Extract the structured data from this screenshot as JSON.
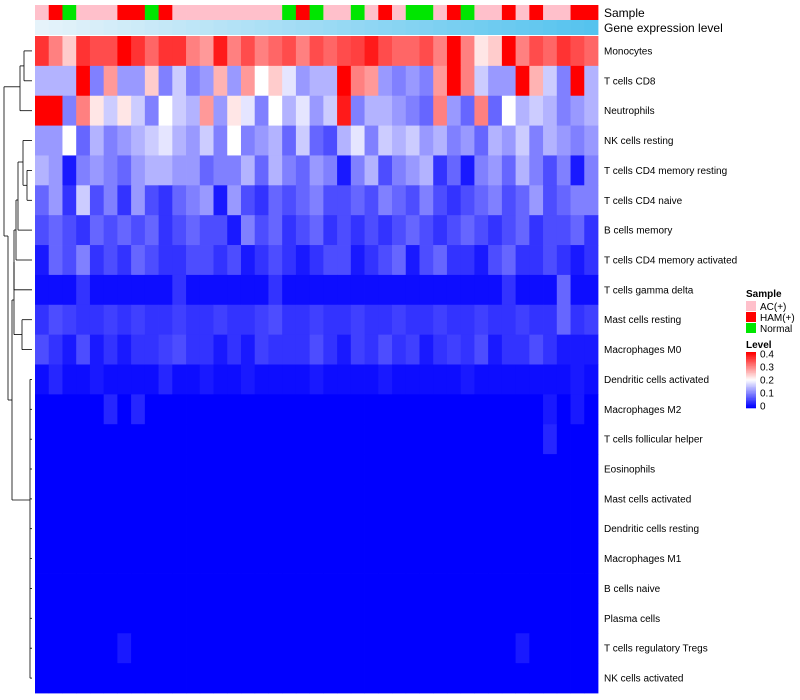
{
  "chart_data": {
    "type": "heatmap",
    "title": "",
    "annotation_rows": [
      "Sample",
      "Gene expression level"
    ],
    "sample_groups": [
      "AC(+)",
      "HAM(+)",
      "Normal",
      "AC(+)",
      "AC(+)",
      "AC(+)",
      "HAM(+)",
      "HAM(+)",
      "Normal",
      "HAM(+)",
      "AC(+)",
      "AC(+)",
      "AC(+)",
      "AC(+)",
      "AC(+)",
      "AC(+)",
      "AC(+)",
      "AC(+)",
      "Normal",
      "HAM(+)",
      "Normal",
      "AC(+)",
      "AC(+)",
      "Normal",
      "AC(+)",
      "HAM(+)",
      "AC(+)",
      "Normal",
      "Normal",
      "AC(+)",
      "HAM(+)",
      "Normal",
      "AC(+)",
      "AC(+)",
      "HAM(+)",
      "AC(+)",
      "HAM(+)",
      "AC(+)",
      "AC(+)",
      "HAM(+)",
      "HAM(+)"
    ],
    "gene_expression": [
      0.02,
      0.04,
      0.06,
      0.08,
      0.1,
      0.12,
      0.14,
      0.16,
      0.18,
      0.2,
      0.22,
      0.24,
      0.26,
      0.28,
      0.3,
      0.32,
      0.34,
      0.36,
      0.38,
      0.4,
      0.42,
      0.44,
      0.46,
      0.48,
      0.5,
      0.52,
      0.54,
      0.56,
      0.58,
      0.6,
      0.62,
      0.64,
      0.66,
      0.68,
      0.7,
      0.72,
      0.74,
      0.76,
      0.78,
      0.8,
      0.82
    ],
    "cell_types": [
      "Monocytes",
      "T cells CD8",
      "Neutrophils",
      "NK cells resting",
      "T cells CD4 memory resting",
      "T cells CD4 naive",
      "B cells memory",
      "T cells CD4 memory activated",
      "T cells gamma delta",
      "Mast cells resting",
      "Macrophages M0",
      "Dendritic cells activated",
      "Macrophages M2",
      "T cells follicular helper",
      "Eosinophils",
      "Mast cells activated",
      "Dendritic cells resting",
      "Macrophages M1",
      "B cells naive",
      "Plasma cells",
      "T cells regulatory  Tregs",
      "NK cells activated"
    ],
    "values": [
      [
        0.36,
        0.3,
        0.24,
        0.36,
        0.34,
        0.34,
        0.4,
        0.36,
        0.32,
        0.36,
        0.36,
        0.3,
        0.28,
        0.38,
        0.3,
        0.34,
        0.3,
        0.32,
        0.34,
        0.3,
        0.34,
        0.32,
        0.34,
        0.35,
        0.38,
        0.34,
        0.32,
        0.32,
        0.34,
        0.3,
        0.4,
        0.3,
        0.22,
        0.24,
        0.4,
        0.3,
        0.34,
        0.32,
        0.36,
        0.34,
        0.32
      ],
      [
        0.14,
        0.14,
        0.14,
        0.4,
        0.1,
        0.28,
        0.12,
        0.12,
        0.24,
        0.1,
        0.16,
        0.1,
        0.12,
        0.26,
        0.12,
        0.28,
        0.2,
        0.24,
        0.18,
        0.12,
        0.14,
        0.14,
        0.4,
        0.3,
        0.28,
        0.12,
        0.1,
        0.12,
        0.1,
        0.28,
        0.4,
        0.3,
        0.16,
        0.12,
        0.12,
        0.4,
        0.26,
        0.16,
        0.1,
        0.4,
        0.14
      ],
      [
        0.4,
        0.4,
        0.1,
        0.3,
        0.22,
        0.16,
        0.22,
        0.16,
        0.1,
        0.2,
        0.16,
        0.14,
        0.28,
        0.12,
        0.22,
        0.18,
        0.1,
        0.2,
        0.14,
        0.18,
        0.12,
        0.16,
        0.38,
        0.1,
        0.14,
        0.14,
        0.12,
        0.1,
        0.08,
        0.3,
        0.12,
        0.08,
        0.3,
        0.08,
        0.2,
        0.14,
        0.16,
        0.14,
        0.1,
        0.12,
        0.14
      ],
      [
        0.12,
        0.12,
        0.2,
        0.08,
        0.14,
        0.1,
        0.12,
        0.14,
        0.16,
        0.18,
        0.14,
        0.12,
        0.16,
        0.1,
        0.2,
        0.1,
        0.12,
        0.14,
        0.08,
        0.16,
        0.08,
        0.06,
        0.14,
        0.18,
        0.1,
        0.16,
        0.14,
        0.16,
        0.12,
        0.14,
        0.1,
        0.12,
        0.08,
        0.14,
        0.12,
        0.16,
        0.1,
        0.14,
        0.12,
        0.1,
        0.12
      ],
      [
        0.14,
        0.12,
        0.02,
        0.1,
        0.12,
        0.1,
        0.08,
        0.12,
        0.14,
        0.14,
        0.12,
        0.12,
        0.08,
        0.1,
        0.1,
        0.14,
        0.08,
        0.14,
        0.1,
        0.08,
        0.12,
        0.1,
        0.02,
        0.1,
        0.14,
        0.06,
        0.1,
        0.12,
        0.14,
        0.04,
        0.08,
        0.02,
        0.1,
        0.12,
        0.08,
        0.14,
        0.1,
        0.06,
        0.1,
        0.02,
        0.1
      ],
      [
        0.08,
        0.12,
        0.04,
        0.16,
        0.06,
        0.1,
        0.04,
        0.12,
        0.06,
        0.04,
        0.08,
        0.1,
        0.12,
        0.02,
        0.12,
        0.06,
        0.04,
        0.08,
        0.06,
        0.08,
        0.1,
        0.06,
        0.06,
        0.08,
        0.06,
        0.1,
        0.08,
        0.06,
        0.1,
        0.06,
        0.04,
        0.06,
        0.08,
        0.1,
        0.06,
        0.08,
        0.12,
        0.06,
        0.08,
        0.1,
        0.1
      ],
      [
        0.06,
        0.08,
        0.06,
        0.04,
        0.08,
        0.06,
        0.08,
        0.06,
        0.08,
        0.04,
        0.06,
        0.08,
        0.06,
        0.06,
        0.02,
        0.1,
        0.06,
        0.08,
        0.04,
        0.06,
        0.08,
        0.04,
        0.06,
        0.04,
        0.06,
        0.04,
        0.06,
        0.08,
        0.06,
        0.04,
        0.06,
        0.08,
        0.06,
        0.04,
        0.06,
        0.08,
        0.04,
        0.06,
        0.06,
        0.08,
        0.04
      ],
      [
        0.02,
        0.08,
        0.06,
        0.1,
        0.04,
        0.06,
        0.04,
        0.08,
        0.06,
        0.04,
        0.04,
        0.06,
        0.06,
        0.04,
        0.06,
        0.02,
        0.04,
        0.06,
        0.04,
        0.02,
        0.04,
        0.06,
        0.06,
        0.02,
        0.04,
        0.06,
        0.08,
        0.02,
        0.06,
        0.08,
        0.04,
        0.04,
        0.02,
        0.06,
        0.08,
        0.04,
        0.04,
        0.06,
        0.04,
        0.02,
        0.04
      ],
      [
        0.01,
        0.01,
        0.01,
        0.04,
        0.01,
        0.01,
        0.01,
        0.01,
        0.01,
        0.01,
        0.04,
        0.01,
        0.01,
        0.01,
        0.01,
        0.01,
        0.01,
        0.04,
        0.01,
        0.01,
        0.01,
        0.01,
        0.01,
        0.01,
        0.01,
        0.01,
        0.01,
        0.01,
        0.01,
        0.01,
        0.01,
        0.01,
        0.01,
        0.01,
        0.04,
        0.01,
        0.01,
        0.01,
        0.08,
        0.01,
        0.01
      ],
      [
        0.04,
        0.06,
        0.05,
        0.04,
        0.04,
        0.05,
        0.04,
        0.05,
        0.04,
        0.04,
        0.05,
        0.04,
        0.04,
        0.05,
        0.04,
        0.04,
        0.05,
        0.06,
        0.04,
        0.04,
        0.05,
        0.04,
        0.04,
        0.05,
        0.04,
        0.04,
        0.05,
        0.04,
        0.04,
        0.05,
        0.04,
        0.04,
        0.05,
        0.04,
        0.04,
        0.05,
        0.04,
        0.04,
        0.08,
        0.04,
        0.05
      ],
      [
        0.06,
        0.04,
        0.02,
        0.06,
        0.02,
        0.04,
        0.02,
        0.04,
        0.04,
        0.05,
        0.06,
        0.04,
        0.04,
        0.02,
        0.04,
        0.02,
        0.05,
        0.04,
        0.04,
        0.04,
        0.06,
        0.04,
        0.02,
        0.05,
        0.04,
        0.06,
        0.04,
        0.05,
        0.02,
        0.04,
        0.05,
        0.04,
        0.06,
        0.02,
        0.04,
        0.04,
        0.06,
        0.04,
        0.02,
        0.02,
        0.02
      ],
      [
        0.01,
        0.03,
        0.01,
        0.01,
        0.02,
        0.01,
        0.01,
        0.01,
        0.01,
        0.03,
        0.01,
        0.01,
        0.02,
        0.01,
        0.01,
        0.02,
        0.01,
        0.01,
        0.01,
        0.01,
        0.02,
        0.01,
        0.01,
        0.01,
        0.01,
        0.02,
        0.01,
        0.01,
        0.01,
        0.01,
        0.01,
        0.02,
        0.01,
        0.01,
        0.01,
        0.01,
        0.01,
        0.01,
        0.01,
        0.02,
        0.01
      ],
      [
        0.0,
        0.0,
        0.0,
        0.0,
        0.0,
        0.03,
        0.0,
        0.03,
        0.0,
        0.0,
        0.0,
        0.0,
        0.0,
        0.0,
        0.0,
        0.0,
        0.0,
        0.0,
        0.0,
        0.0,
        0.0,
        0.0,
        0.0,
        0.0,
        0.0,
        0.0,
        0.0,
        0.0,
        0.0,
        0.0,
        0.0,
        0.0,
        0.0,
        0.0,
        0.0,
        0.0,
        0.0,
        0.02,
        0.0,
        0.02,
        0.0
      ],
      [
        0.0,
        0.0,
        0.0,
        0.0,
        0.0,
        0.0,
        0.0,
        0.0,
        0.0,
        0.0,
        0.0,
        0.0,
        0.0,
        0.0,
        0.0,
        0.0,
        0.0,
        0.0,
        0.0,
        0.0,
        0.0,
        0.0,
        0.0,
        0.0,
        0.0,
        0.0,
        0.0,
        0.0,
        0.0,
        0.0,
        0.0,
        0.0,
        0.0,
        0.0,
        0.0,
        0.0,
        0.0,
        0.03,
        0.0,
        0.0,
        0.0
      ],
      [
        0.0,
        0.0,
        0.0,
        0.0,
        0.0,
        0.0,
        0.0,
        0.0,
        0.0,
        0.0,
        0.0,
        0.0,
        0.0,
        0.0,
        0.0,
        0.0,
        0.0,
        0.0,
        0.0,
        0.0,
        0.0,
        0.0,
        0.0,
        0.0,
        0.0,
        0.0,
        0.0,
        0.0,
        0.0,
        0.0,
        0.0,
        0.0,
        0.0,
        0.0,
        0.0,
        0.0,
        0.0,
        0.0,
        0.0,
        0.0,
        0.0
      ],
      [
        0.0,
        0.0,
        0.0,
        0.0,
        0.0,
        0.0,
        0.0,
        0.0,
        0.0,
        0.0,
        0.0,
        0.0,
        0.0,
        0.0,
        0.0,
        0.0,
        0.0,
        0.0,
        0.0,
        0.0,
        0.0,
        0.0,
        0.0,
        0.0,
        0.0,
        0.0,
        0.0,
        0.0,
        0.0,
        0.0,
        0.0,
        0.0,
        0.0,
        0.0,
        0.0,
        0.0,
        0.0,
        0.0,
        0.0,
        0.0,
        0.0
      ],
      [
        0.0,
        0.0,
        0.0,
        0.0,
        0.0,
        0.0,
        0.0,
        0.0,
        0.0,
        0.0,
        0.0,
        0.0,
        0.0,
        0.0,
        0.0,
        0.0,
        0.0,
        0.0,
        0.0,
        0.0,
        0.0,
        0.0,
        0.0,
        0.0,
        0.0,
        0.0,
        0.0,
        0.0,
        0.0,
        0.0,
        0.0,
        0.0,
        0.0,
        0.0,
        0.0,
        0.0,
        0.0,
        0.0,
        0.0,
        0.0,
        0.0
      ],
      [
        0.0,
        0.0,
        0.0,
        0.0,
        0.0,
        0.0,
        0.0,
        0.0,
        0.0,
        0.0,
        0.0,
        0.0,
        0.0,
        0.0,
        0.0,
        0.0,
        0.0,
        0.0,
        0.0,
        0.0,
        0.0,
        0.0,
        0.0,
        0.0,
        0.0,
        0.0,
        0.0,
        0.0,
        0.0,
        0.0,
        0.0,
        0.0,
        0.0,
        0.0,
        0.0,
        0.0,
        0.0,
        0.0,
        0.0,
        0.0,
        0.0
      ],
      [
        0.0,
        0.0,
        0.0,
        0.0,
        0.0,
        0.0,
        0.0,
        0.0,
        0.0,
        0.0,
        0.0,
        0.0,
        0.0,
        0.0,
        0.0,
        0.0,
        0.0,
        0.0,
        0.0,
        0.0,
        0.0,
        0.0,
        0.0,
        0.0,
        0.0,
        0.0,
        0.0,
        0.0,
        0.0,
        0.0,
        0.0,
        0.0,
        0.0,
        0.0,
        0.0,
        0.0,
        0.0,
        0.0,
        0.0,
        0.0,
        0.0
      ],
      [
        0.0,
        0.0,
        0.0,
        0.0,
        0.0,
        0.0,
        0.0,
        0.0,
        0.0,
        0.0,
        0.0,
        0.0,
        0.0,
        0.0,
        0.0,
        0.0,
        0.0,
        0.0,
        0.0,
        0.0,
        0.0,
        0.0,
        0.0,
        0.0,
        0.0,
        0.0,
        0.0,
        0.0,
        0.0,
        0.0,
        0.0,
        0.0,
        0.0,
        0.0,
        0.0,
        0.0,
        0.0,
        0.0,
        0.0,
        0.0,
        0.0
      ],
      [
        0.0,
        0.0,
        0.0,
        0.0,
        0.0,
        0.0,
        0.02,
        0.0,
        0.0,
        0.0,
        0.0,
        0.0,
        0.0,
        0.0,
        0.0,
        0.0,
        0.0,
        0.0,
        0.0,
        0.0,
        0.0,
        0.0,
        0.0,
        0.0,
        0.0,
        0.0,
        0.0,
        0.0,
        0.0,
        0.0,
        0.0,
        0.0,
        0.0,
        0.0,
        0.0,
        0.02,
        0.0,
        0.0,
        0.0,
        0.0,
        0.0
      ],
      [
        0.0,
        0.0,
        0.0,
        0.0,
        0.0,
        0.0,
        0.0,
        0.0,
        0.0,
        0.0,
        0.0,
        0.0,
        0.0,
        0.0,
        0.0,
        0.0,
        0.0,
        0.0,
        0.0,
        0.0,
        0.0,
        0.0,
        0.0,
        0.0,
        0.0,
        0.0,
        0.0,
        0.0,
        0.0,
        0.0,
        0.0,
        0.0,
        0.0,
        0.0,
        0.0,
        0.0,
        0.0,
        0.0,
        0.0,
        0.0,
        0.0
      ]
    ],
    "color_scale": {
      "min": 0,
      "mid": 0.2,
      "max": 0.4,
      "low_color": "#0000ff",
      "mid_color": "#ffffff",
      "high_color": "#ff0000"
    },
    "legend": {
      "sample": {
        "title": "Sample",
        "entries": [
          {
            "label": "AC(+)",
            "color": "#ffc0cb"
          },
          {
            "label": "HAM(+)",
            "color": "#ff0000"
          },
          {
            "label": "Normal",
            "color": "#00e600"
          }
        ]
      },
      "level": {
        "title": "Level",
        "ticks": [
          "0.4",
          "0.3",
          "0.2",
          "0.1",
          "0"
        ]
      },
      "position": "right"
    },
    "gene_expression_colors": {
      "low": "#e6f3fa",
      "high": "#55c3ee"
    }
  }
}
